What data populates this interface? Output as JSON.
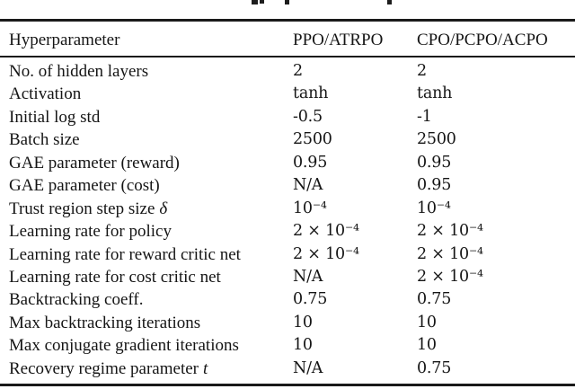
{
  "caption": {
    "clipped": true
  },
  "table": {
    "headers": {
      "parameter": "Hyperparameter",
      "col1": "PPO/ATRPO",
      "col2": "CPO/PCPO/ACPO"
    },
    "rows": [
      {
        "label": "No. of hidden layers",
        "math": "",
        "ppo_atrpo": "2",
        "cpo_pcpo_acpo": "2"
      },
      {
        "label": "Activation",
        "math": "",
        "ppo_atrpo": "tanh",
        "cpo_pcpo_acpo": "tanh"
      },
      {
        "label": "Initial log std",
        "math": "",
        "ppo_atrpo": "-0.5",
        "cpo_pcpo_acpo": "-1"
      },
      {
        "label": "Batch size",
        "math": "",
        "ppo_atrpo": "2500",
        "cpo_pcpo_acpo": "2500"
      },
      {
        "label": "GAE parameter (reward)",
        "math": "",
        "ppo_atrpo": "0.95",
        "cpo_pcpo_acpo": "0.95"
      },
      {
        "label": "GAE parameter (cost)",
        "math": "",
        "ppo_atrpo": "N/A",
        "cpo_pcpo_acpo": "0.95"
      },
      {
        "label": "Trust region step size",
        "math": "δ",
        "ppo_atrpo": "10⁻⁴",
        "cpo_pcpo_acpo": "10⁻⁴"
      },
      {
        "label": "Learning rate for policy",
        "math": "",
        "ppo_atrpo": "2 × 10⁻⁴",
        "cpo_pcpo_acpo": "2 × 10⁻⁴"
      },
      {
        "label": "Learning rate for reward critic net",
        "math": "",
        "ppo_atrpo": "2 × 10⁻⁴",
        "cpo_pcpo_acpo": "2 × 10⁻⁴"
      },
      {
        "label": "Learning rate for cost critic net",
        "math": "",
        "ppo_atrpo": "N/A",
        "cpo_pcpo_acpo": "2 × 10⁻⁴"
      },
      {
        "label": "Backtracking coeff.",
        "math": "",
        "ppo_atrpo": "0.75",
        "cpo_pcpo_acpo": "0.75"
      },
      {
        "label": "Max backtracking iterations",
        "math": "",
        "ppo_atrpo": "10",
        "cpo_pcpo_acpo": "10"
      },
      {
        "label": "Max conjugate gradient iterations",
        "math": "",
        "ppo_atrpo": "10",
        "cpo_pcpo_acpo": "10"
      },
      {
        "label": "Recovery regime parameter",
        "math": "t",
        "ppo_atrpo": "N/A",
        "cpo_pcpo_acpo": "0.75"
      }
    ]
  },
  "colors": {
    "text": "#151515",
    "rule": "#1a1a1a",
    "background": "#ffffff"
  }
}
